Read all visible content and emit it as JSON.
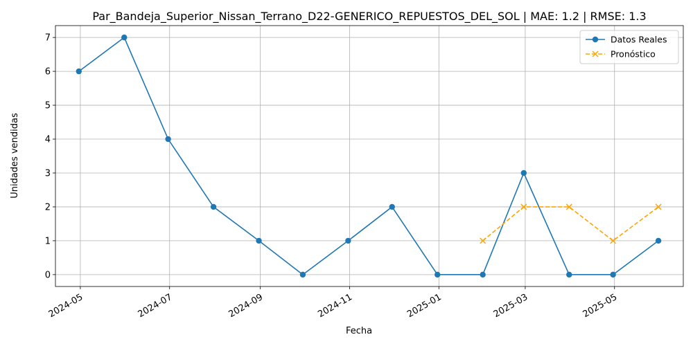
{
  "chart_data": {
    "type": "line",
    "title": "Par_Bandeja_Superior_Nissan_Terrano_D22-GENERICO_REPUESTOS_DEL_SOL | MAE: 1.2 | RMSE: 1.3",
    "xlabel": "Fecha",
    "ylabel": "Unidades vendidas",
    "ylim": [
      -0.35,
      7.35
    ],
    "xlim": [
      "2024-04-14",
      "2025-06-17"
    ],
    "grid": true,
    "legend_position": "top-right",
    "x_ticks": [
      "2024-05",
      "2024-07",
      "2024-09",
      "2024-11",
      "2025-01",
      "2025-03",
      "2025-05"
    ],
    "y_ticks": [
      0,
      1,
      2,
      3,
      4,
      5,
      6,
      7
    ],
    "series": [
      {
        "name": "Datos Reales",
        "color": "#1f77b4",
        "line_style": "solid",
        "marker": "circle",
        "x": [
          "2024-04-30",
          "2024-05-31",
          "2024-06-30",
          "2024-07-31",
          "2024-08-31",
          "2024-09-30",
          "2024-10-31",
          "2024-11-30",
          "2024-12-31",
          "2025-01-31",
          "2025-02-28",
          "2025-03-31",
          "2025-04-30",
          "2025-05-31"
        ],
        "values": [
          6,
          7,
          4,
          2,
          1,
          0,
          1,
          2,
          0,
          0,
          3,
          0,
          0,
          1
        ]
      },
      {
        "name": "Pronóstico",
        "color": "#ffa500",
        "line_style": "dashed",
        "marker": "x",
        "x": [
          "2025-01-31",
          "2025-02-28",
          "2025-03-31",
          "2025-04-30",
          "2025-05-31"
        ],
        "values": [
          1,
          2,
          2,
          1,
          2
        ]
      }
    ]
  }
}
